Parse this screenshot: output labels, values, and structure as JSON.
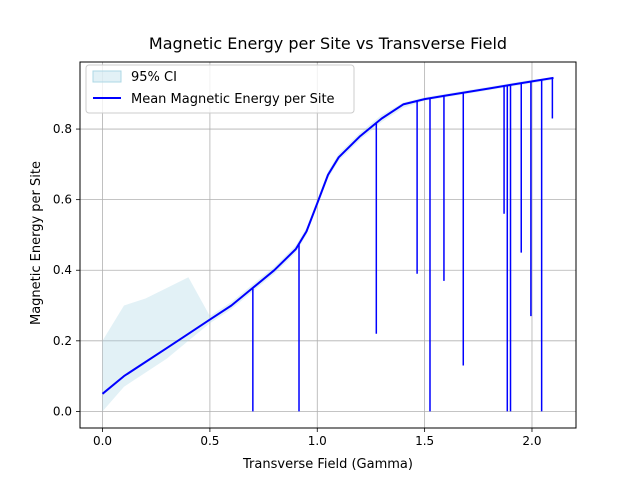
{
  "chart_data": {
    "type": "line",
    "title": "Magnetic Energy per Site vs Transverse Field",
    "xlabel": "Transverse Field (Gamma)",
    "ylabel": "Magnetic Energy per Site",
    "xlim": [
      -0.105,
      2.205
    ],
    "ylim": [
      -0.047,
      0.99
    ],
    "x_ticks": [
      0.0,
      0.5,
      1.0,
      1.5,
      2.0
    ],
    "x_tick_labels": [
      "0.0",
      "0.5",
      "1.0",
      "1.5",
      "2.0"
    ],
    "y_ticks": [
      0.0,
      0.2,
      0.4,
      0.6,
      0.8
    ],
    "y_tick_labels": [
      "0.0",
      "0.2",
      "0.4",
      "0.6",
      "0.8"
    ],
    "grid": true,
    "legend_position": "upper-left",
    "series": [
      {
        "name": "95% CI",
        "kind": "band",
        "color": "#add8e6",
        "x": [
          0.0,
          0.1,
          0.2,
          0.3,
          0.4,
          0.5,
          0.6,
          0.7,
          0.8,
          0.9,
          0.95,
          1.0,
          1.05,
          1.1,
          1.2,
          1.3,
          1.4,
          1.5,
          1.6,
          1.7,
          1.8,
          1.9,
          2.0,
          2.1
        ],
        "lower": [
          0.0,
          0.07,
          0.11,
          0.15,
          0.2,
          0.25,
          0.29,
          0.34,
          0.39,
          0.45,
          0.5,
          0.58,
          0.66,
          0.71,
          0.77,
          0.82,
          0.86,
          0.88,
          0.89,
          0.9,
          0.91,
          0.92,
          0.93,
          0.94
        ],
        "upper": [
          0.2,
          0.3,
          0.32,
          0.35,
          0.38,
          0.27,
          0.31,
          0.36,
          0.41,
          0.47,
          0.52,
          0.6,
          0.68,
          0.73,
          0.79,
          0.84,
          0.875,
          0.89,
          0.9,
          0.91,
          0.92,
          0.93,
          0.94,
          0.945
        ]
      },
      {
        "name": "Mean Magnetic Energy per Site",
        "kind": "line",
        "color": "#0000ff",
        "x": [
          0.0,
          0.1,
          0.2,
          0.3,
          0.4,
          0.5,
          0.6,
          0.7,
          0.8,
          0.9,
          0.95,
          1.0,
          1.05,
          1.1,
          1.2,
          1.3,
          1.4,
          1.5,
          1.6,
          1.7,
          1.8,
          1.9,
          2.0,
          2.1
        ],
        "values": [
          0.05,
          0.1,
          0.14,
          0.18,
          0.22,
          0.26,
          0.3,
          0.35,
          0.4,
          0.46,
          0.51,
          0.59,
          0.67,
          0.72,
          0.78,
          0.83,
          0.87,
          0.885,
          0.895,
          0.905,
          0.915,
          0.925,
          0.935,
          0.945
        ]
      }
    ],
    "drops": [
      {
        "x": 0.7,
        "y": 0.0
      },
      {
        "x": 0.915,
        "y": 0.0
      },
      {
        "x": 1.275,
        "y": 0.22
      },
      {
        "x": 1.465,
        "y": 0.39
      },
      {
        "x": 1.525,
        "y": 0.0
      },
      {
        "x": 1.59,
        "y": 0.37
      },
      {
        "x": 1.68,
        "y": 0.13
      },
      {
        "x": 1.885,
        "y": 0.0
      },
      {
        "x": 1.9,
        "y": 0.0
      },
      {
        "x": 1.995,
        "y": 0.27
      },
      {
        "x": 2.045,
        "y": 0.0
      },
      {
        "x": 1.95,
        "y": 0.45
      },
      {
        "x": 1.87,
        "y": 0.56
      },
      {
        "x": 2.095,
        "y": 0.83
      }
    ]
  }
}
